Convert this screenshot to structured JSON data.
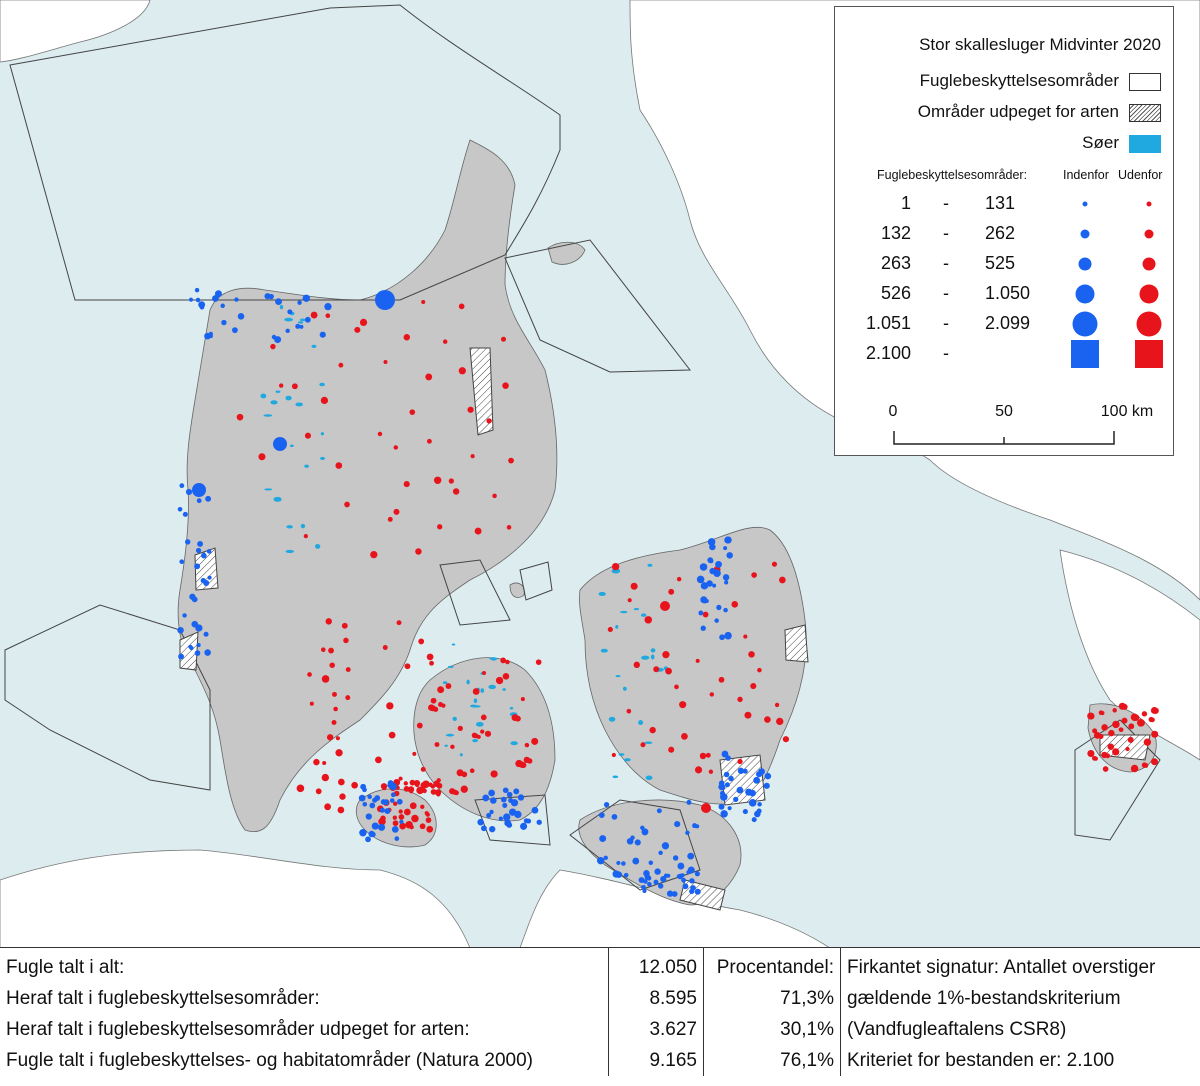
{
  "colors": {
    "sea": "#dcecef",
    "land": "#c6c7c6",
    "neighbour_land": "#ffffff",
    "inside": "#1a63f0",
    "outside": "#e8141c",
    "lake": "#20a8e0"
  },
  "legend": {
    "title": "Stor skallesluger Midvinter 2020",
    "items": [
      {
        "label": "Fuglebeskyttelsesområder",
        "swatch": "white"
      },
      {
        "label": "Områder udpeget for arten",
        "swatch": "hatch"
      },
      {
        "label": "Søer",
        "swatch": "lake"
      }
    ],
    "subheader": "Fuglebeskyttelsesområder:",
    "col_inside": "Indenfor",
    "col_outside": "Udenfor",
    "classes": [
      {
        "lo": "1",
        "dash": "-",
        "hi": "131",
        "symbol": "circle",
        "rank": 1
      },
      {
        "lo": "132",
        "dash": "-",
        "hi": "262",
        "symbol": "circle",
        "rank": 2
      },
      {
        "lo": "263",
        "dash": "-",
        "hi": "525",
        "symbol": "circle",
        "rank": 3
      },
      {
        "lo": "526",
        "dash": "-",
        "hi": "1.050",
        "symbol": "circle",
        "rank": 4
      },
      {
        "lo": "1.051",
        "dash": "-",
        "hi": "2.099",
        "symbol": "circle",
        "rank": 5
      },
      {
        "lo": "2.100",
        "dash": "-",
        "hi": "",
        "symbol": "square",
        "rank": 6
      }
    ],
    "scale": {
      "labels": [
        "0",
        "50",
        "100 km"
      ]
    }
  },
  "stats": {
    "rows": [
      {
        "label": "Fugle talt i alt:",
        "count": "12.050",
        "pct": "Procentandel:",
        "note": "Firkantet signatur: Antallet overstiger"
      },
      {
        "label": "Heraf talt i fuglebeskyttelsesområder:",
        "count": "8.595",
        "pct": "71,3%",
        "note": "gældende 1%-bestandskriterium"
      },
      {
        "label": "Heraf talt i fuglebeskyttelsesområder udpeget for arten:",
        "count": "3.627",
        "pct": "30,1%",
        "note": "(Vandfugleaftalens CSR8)"
      },
      {
        "label": "Fugle talt i fuglebeskyttelses- og habitatområder (Natura 2000)",
        "count": "9.165",
        "pct": "76,1%",
        "note": "Kriteriet for bestanden er: 2.100"
      }
    ]
  }
}
